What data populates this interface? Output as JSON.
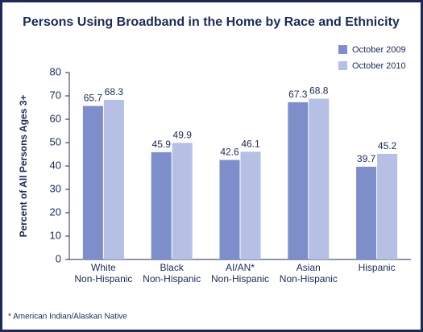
{
  "chart_data": {
    "type": "bar",
    "title": "Persons Using Broadband in the Home by Race and Ethnicity",
    "y_label": "Percent of All Persons Ages 3+",
    "categories": [
      [
        "White",
        "Non-Hispanic"
      ],
      [
        "Black",
        "Non-Hispanic"
      ],
      [
        "AI/AN*",
        "Non-Hispanic"
      ],
      [
        "Asian",
        "Non-Hispanic"
      ],
      [
        "Hispanic"
      ]
    ],
    "series": [
      {
        "name": "October 2009",
        "color": "#7d8ecb",
        "values": [
          65.7,
          45.9,
          42.6,
          67.3,
          39.7
        ]
      },
      {
        "name": "October 2010",
        "color": "#b6bfe4",
        "values": [
          68.3,
          49.9,
          46.1,
          68.8,
          45.2
        ]
      }
    ],
    "ylim": [
      0,
      80
    ],
    "yticks": [
      0,
      10,
      20,
      30,
      40,
      50,
      60,
      70,
      80
    ],
    "footnote": "* American Indian/Alaskan Native"
  }
}
